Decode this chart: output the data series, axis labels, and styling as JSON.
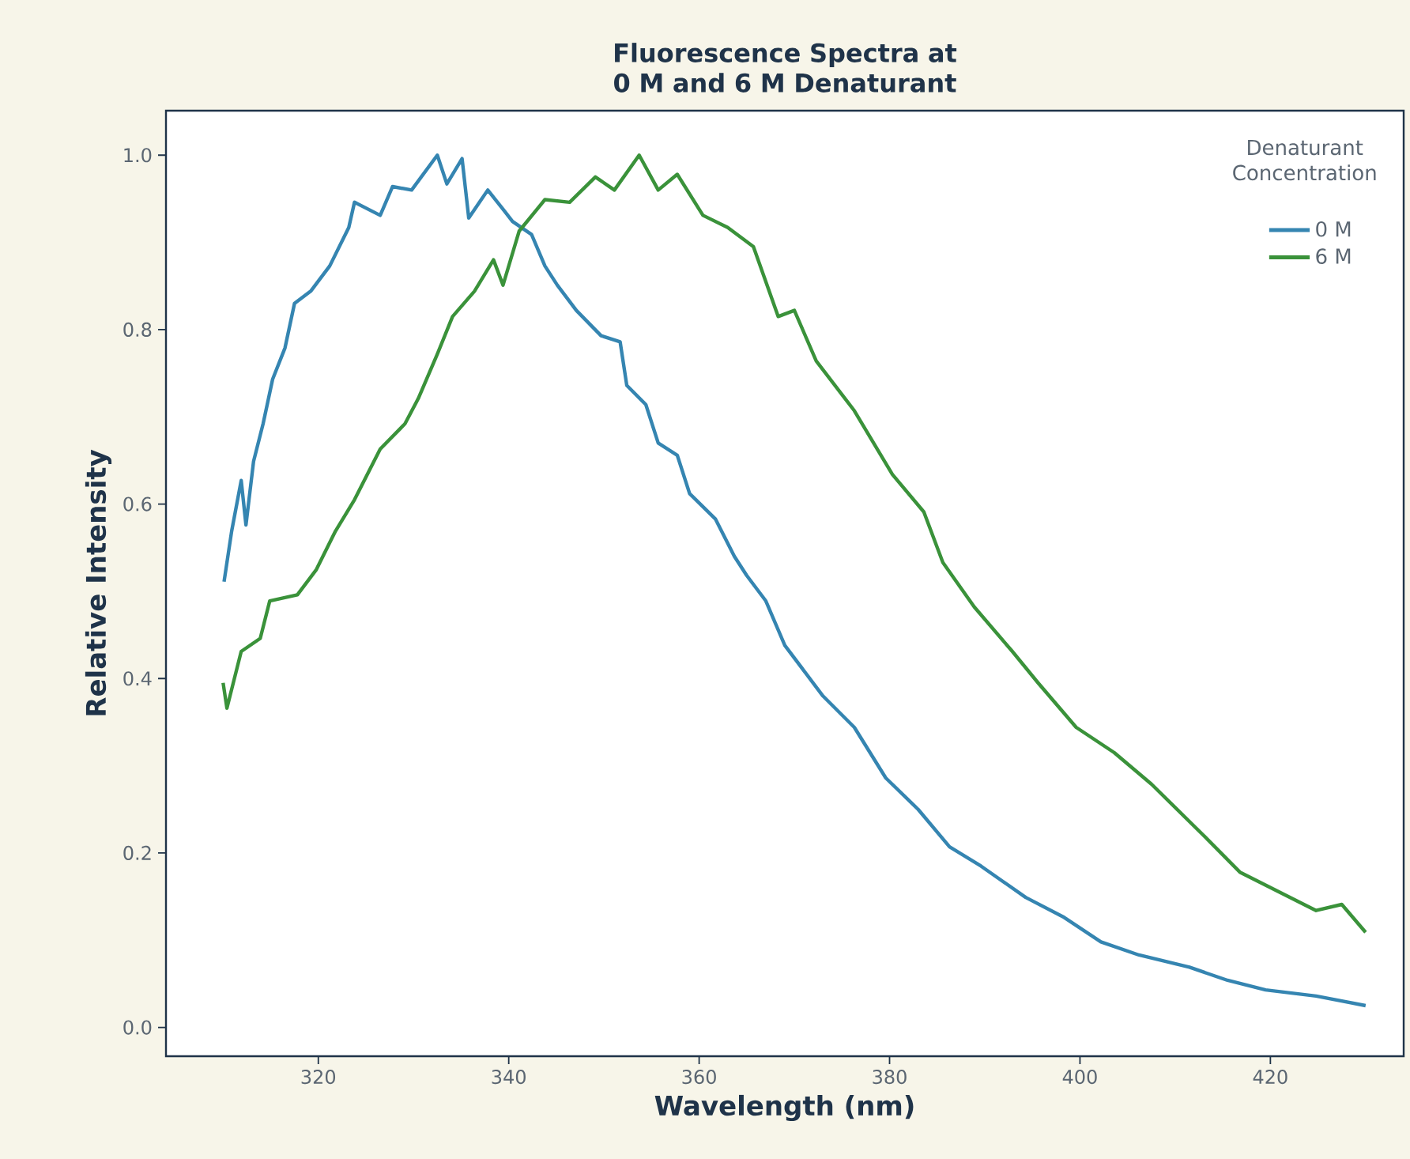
{
  "chart_data": {
    "type": "line",
    "title": "Fluorescence Spectra at 0 M and 6 M Denaturant",
    "xlabel": "Wavelength (nm)",
    "ylabel": "Relative Intensity",
    "legend_title": "Denaturant Concentration",
    "legend": "top right",
    "grid": false,
    "marker": "none",
    "line_style": "solid",
    "xlim": [
      304,
      434
    ],
    "ylim": [
      -0.033,
      1.051
    ],
    "xticks": [
      320,
      340,
      360,
      380,
      400,
      420
    ],
    "yticks": [
      {
        "value": 0,
        "label": "0.0"
      },
      {
        "value": 0.2,
        "label": "0.2"
      },
      {
        "value": 0.4,
        "label": "0.4"
      },
      {
        "value": 0.6,
        "label": "0.6"
      },
      {
        "value": 0.8,
        "label": "0.8"
      },
      {
        "value": 1.0,
        "label": "1.0"
      }
    ],
    "series": [
      {
        "name": "0 M",
        "color": "#3585b1",
        "x": [
          310.1,
          310.9,
          311.9,
          312.4,
          313.2,
          314.2,
          315.2,
          316.5,
          317.5,
          319.2,
          321.2,
          323.2,
          323.8,
          326.5,
          327.8,
          329.8,
          332.5,
          333.5,
          335.1,
          335.8,
          337.8,
          339.4,
          340.4,
          342.4,
          343.8,
          345.1,
          347.1,
          349.7,
          351.7,
          352.4,
          354.4,
          355.7,
          357.7,
          359.0,
          361.7,
          363.7,
          365.0,
          367.0,
          369.0,
          373.0,
          376.3,
          379.6,
          383.0,
          386.3,
          389.6,
          394.3,
          398.2,
          402.2,
          406.2,
          411.5,
          415.5,
          419.5,
          424.8,
          430.0
        ],
        "values": [
          0.511,
          0.569,
          0.627,
          0.576,
          0.649,
          0.692,
          0.743,
          0.779,
          0.83,
          0.844,
          0.873,
          0.917,
          0.946,
          0.931,
          0.964,
          0.96,
          1.0,
          0.967,
          0.996,
          0.928,
          0.96,
          0.938,
          0.924,
          0.909,
          0.873,
          0.851,
          0.822,
          0.793,
          0.786,
          0.736,
          0.714,
          0.67,
          0.656,
          0.612,
          0.583,
          0.54,
          0.518,
          0.489,
          0.438,
          0.38,
          0.344,
          0.286,
          0.25,
          0.207,
          0.185,
          0.149,
          0.127,
          0.098,
          0.083,
          0.069,
          0.054,
          0.043,
          0.036,
          0.025
        ]
      },
      {
        "name": "6 M",
        "color": "#3a923a",
        "x": [
          310.0,
          310.4,
          311.9,
          313.9,
          314.9,
          317.8,
          319.8,
          321.8,
          323.8,
          326.5,
          329.1,
          330.5,
          332.5,
          334.1,
          336.4,
          338.4,
          339.4,
          341.1,
          343.8,
          346.4,
          349.1,
          351.1,
          353.7,
          355.7,
          357.7,
          360.4,
          363.0,
          365.7,
          368.3,
          370.0,
          372.3,
          376.3,
          380.3,
          383.6,
          385.6,
          388.9,
          392.9,
          395.6,
          399.6,
          403.6,
          407.5,
          412.9,
          416.8,
          420.8,
          424.8,
          427.5,
          430.0
        ],
        "values": [
          0.395,
          0.366,
          0.431,
          0.446,
          0.489,
          0.496,
          0.525,
          0.569,
          0.605,
          0.663,
          0.692,
          0.721,
          0.772,
          0.815,
          0.844,
          0.88,
          0.851,
          0.913,
          0.949,
          0.946,
          0.975,
          0.96,
          1.0,
          0.96,
          0.978,
          0.931,
          0.917,
          0.895,
          0.815,
          0.822,
          0.764,
          0.707,
          0.634,
          0.591,
          0.533,
          0.482,
          0.431,
          0.395,
          0.344,
          0.315,
          0.279,
          0.221,
          0.178,
          0.156,
          0.134,
          0.141,
          0.109
        ]
      }
    ]
  }
}
